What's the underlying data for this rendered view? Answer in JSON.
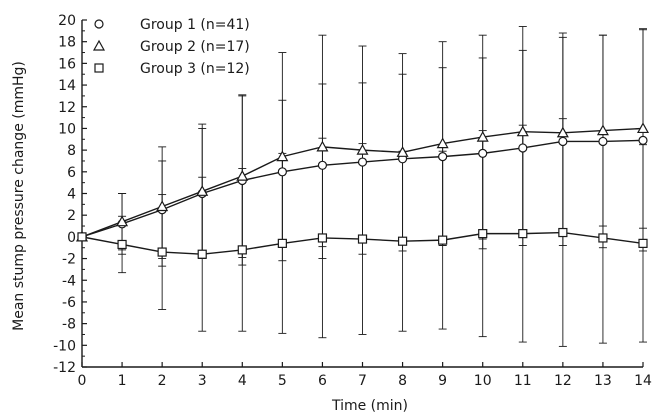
{
  "chart_data": {
    "type": "line",
    "xlabel": "Time (min)",
    "ylabel": "Mean stump pressure change (mmHg)",
    "x": [
      0,
      1,
      2,
      3,
      4,
      5,
      6,
      7,
      8,
      9,
      10,
      11,
      12,
      13,
      14
    ],
    "xlim": [
      0,
      14
    ],
    "ylim": [
      -12,
      20
    ],
    "yticks": [
      -12,
      -10,
      -8,
      -6,
      -4,
      -2,
      0,
      2,
      4,
      6,
      8,
      10,
      12,
      14,
      16,
      18,
      20
    ],
    "grid": false,
    "legend_position": "top-left",
    "series": [
      {
        "name": "Group 1 (n=41)",
        "marker": "circle",
        "values": [
          0,
          1.2,
          2.5,
          4.0,
          5.2,
          6.0,
          6.6,
          6.9,
          7.2,
          7.4,
          7.7,
          8.2,
          8.8,
          8.8,
          8.9
        ],
        "error": [
          0,
          2.8,
          4.5,
          6.0,
          7.8,
          6.6,
          7.5,
          7.3,
          7.8,
          8.2,
          8.8,
          9.0,
          9.6,
          9.8,
          10.2
        ]
      },
      {
        "name": "Group 2 (n=17)",
        "marker": "triangle",
        "values": [
          0,
          1.4,
          2.8,
          4.2,
          5.6,
          7.4,
          8.3,
          8.0,
          7.8,
          8.6,
          9.2,
          9.7,
          9.6,
          9.8,
          10.0
        ],
        "error": [
          0,
          2.6,
          5.5,
          6.2,
          7.5,
          9.6,
          10.3,
          9.6,
          9.1,
          9.4,
          9.4,
          9.7,
          9.2,
          8.8,
          9.2
        ]
      },
      {
        "name": "Group 3 (n=12)",
        "marker": "square",
        "values": [
          0,
          -0.7,
          -1.4,
          -1.6,
          -1.2,
          -0.6,
          -0.1,
          -0.2,
          -0.4,
          -0.3,
          0.3,
          0.3,
          0.4,
          -0.1,
          -0.6
        ],
        "error": [
          0,
          2.6,
          5.3,
          7.1,
          7.5,
          8.3,
          9.2,
          8.8,
          8.3,
          8.2,
          9.5,
          10.0,
          10.5,
          9.7,
          9.1
        ]
      }
    ]
  }
}
